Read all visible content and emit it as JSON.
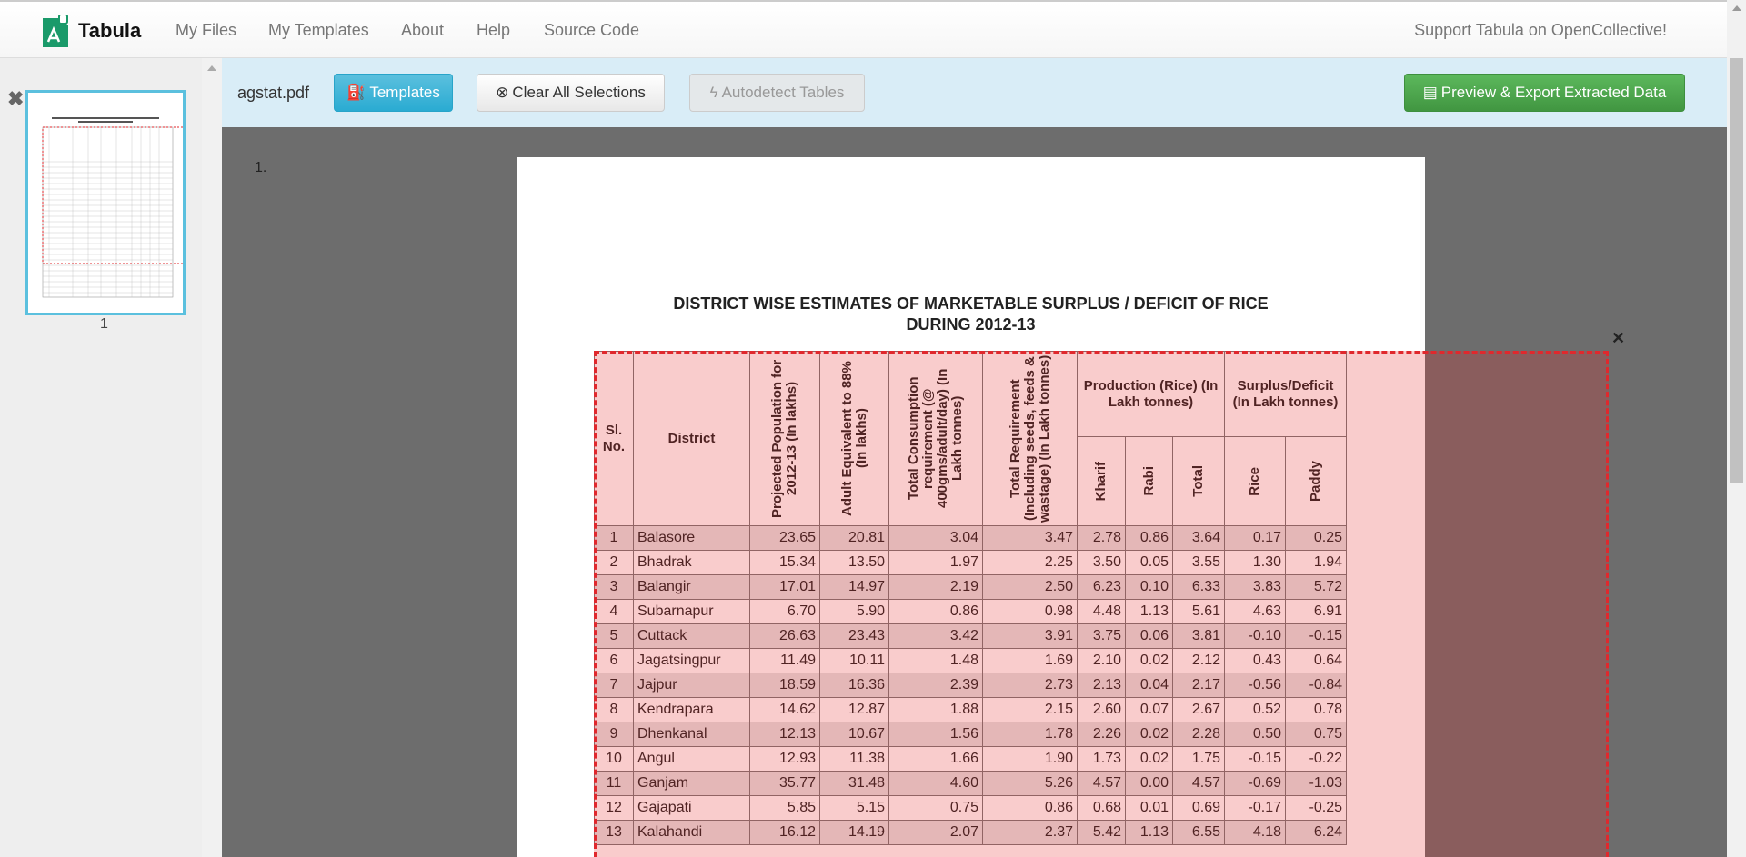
{
  "nav": {
    "brand": "Tabula",
    "links": [
      "My Files",
      "My Templates",
      "About",
      "Help",
      "Source Code"
    ],
    "support": "Support Tabula on OpenCollective!"
  },
  "sidebar": {
    "page_number": "1"
  },
  "toolbar": {
    "filename": "agstat.pdf",
    "templates": "Templates",
    "clear": "Clear All Selections",
    "autodetect": "Autodetect Tables",
    "export": "Preview & Export Extracted Data"
  },
  "colors": {
    "templates_btn": "#31b0d5",
    "export_btn": "#449d44",
    "selection": "#e0282d",
    "toolbar_bg": "#d9edf7"
  },
  "document": {
    "page_label": "1.",
    "title_line1": "DISTRICT WISE ESTIMATES OF MARKETABLE SURPLUS / DEFICIT OF RICE",
    "title_line2": "DURING 2012-13",
    "headers": {
      "sl": "Sl. No.",
      "district": "District",
      "pop": "Projected Population for 2012-13 (In lakhs)",
      "adult": "Adult Equivalent to 88% (In lakhs)",
      "cons": "Total Consumption requirement (@ 400gms/adult/day) (In Lakh tonnes)",
      "req": "Total Requirement (Including seeds, feeds & wastage) (In Lakh tonnes)",
      "prod": "Production (Rice) (In Lakh tonnes)",
      "surplus": "Surplus/Deficit (In Lakh tonnes)",
      "kharif": "Kharif",
      "rabi": "Rabi",
      "total": "Total",
      "rice": "Rice",
      "paddy": "Paddy"
    },
    "rows": [
      [
        "1",
        "Balasore",
        "23.65",
        "20.81",
        "3.04",
        "3.47",
        "2.78",
        "0.86",
        "3.64",
        "0.17",
        "0.25"
      ],
      [
        "2",
        "Bhadrak",
        "15.34",
        "13.50",
        "1.97",
        "2.25",
        "3.50",
        "0.05",
        "3.55",
        "1.30",
        "1.94"
      ],
      [
        "3",
        "Balangir",
        "17.01",
        "14.97",
        "2.19",
        "2.50",
        "6.23",
        "0.10",
        "6.33",
        "3.83",
        "5.72"
      ],
      [
        "4",
        "Subarnapur",
        "6.70",
        "5.90",
        "0.86",
        "0.98",
        "4.48",
        "1.13",
        "5.61",
        "4.63",
        "6.91"
      ],
      [
        "5",
        "Cuttack",
        "26.63",
        "23.43",
        "3.42",
        "3.91",
        "3.75",
        "0.06",
        "3.81",
        "-0.10",
        "-0.15"
      ],
      [
        "6",
        "Jagatsingpur",
        "11.49",
        "10.11",
        "1.48",
        "1.69",
        "2.10",
        "0.02",
        "2.12",
        "0.43",
        "0.64"
      ],
      [
        "7",
        "Jajpur",
        "18.59",
        "16.36",
        "2.39",
        "2.73",
        "2.13",
        "0.04",
        "2.17",
        "-0.56",
        "-0.84"
      ],
      [
        "8",
        "Kendrapara",
        "14.62",
        "12.87",
        "1.88",
        "2.15",
        "2.60",
        "0.07",
        "2.67",
        "0.52",
        "0.78"
      ],
      [
        "9",
        "Dhenkanal",
        "12.13",
        "10.67",
        "1.56",
        "1.78",
        "2.26",
        "0.02",
        "2.28",
        "0.50",
        "0.75"
      ],
      [
        "10",
        "Angul",
        "12.93",
        "11.38",
        "1.66",
        "1.90",
        "1.73",
        "0.02",
        "1.75",
        "-0.15",
        "-0.22"
      ],
      [
        "11",
        "Ganjam",
        "35.77",
        "31.48",
        "4.60",
        "5.26",
        "4.57",
        "0.00",
        "4.57",
        "-0.69",
        "-1.03"
      ],
      [
        "12",
        "Gajapati",
        "5.85",
        "5.15",
        "0.75",
        "0.86",
        "0.68",
        "0.01",
        "0.69",
        "-0.17",
        "-0.25"
      ],
      [
        "13",
        "Kalahandi",
        "16.12",
        "14.19",
        "2.07",
        "2.37",
        "5.42",
        "1.13",
        "6.55",
        "4.18",
        "6.24"
      ]
    ]
  }
}
